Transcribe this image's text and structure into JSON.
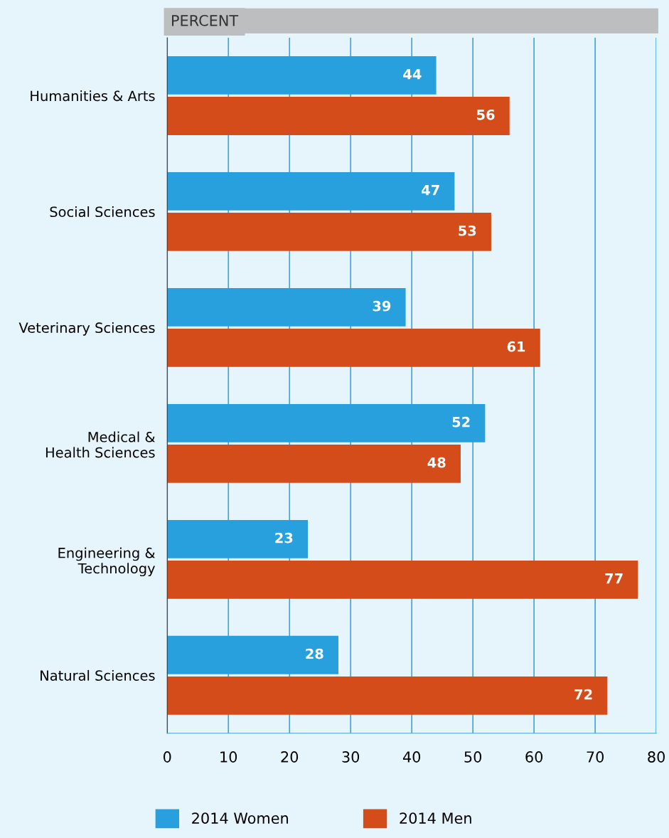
{
  "chart_data": {
    "type": "bar",
    "orientation": "horizontal",
    "title": "PERCENT",
    "categories": [
      "Humanities & Arts",
      "Social Sciences",
      "Veterinary Sciences",
      "Medical &\nHealth Sciences",
      "Engineering &\nTechnology",
      "Natural Sciences"
    ],
    "series": [
      {
        "name": "2014 Women",
        "color": "#27a0dd",
        "values": [
          44,
          47,
          39,
          52,
          23,
          28
        ]
      },
      {
        "name": "2014 Men",
        "color": "#d34c19",
        "values": [
          56,
          53,
          61,
          48,
          77,
          72
        ]
      }
    ],
    "xlim": [
      0,
      80
    ],
    "xticks": [
      0,
      10,
      20,
      30,
      40,
      50,
      60,
      70,
      80
    ],
    "grid": "x",
    "legend": "bottom",
    "data_labels": true
  }
}
